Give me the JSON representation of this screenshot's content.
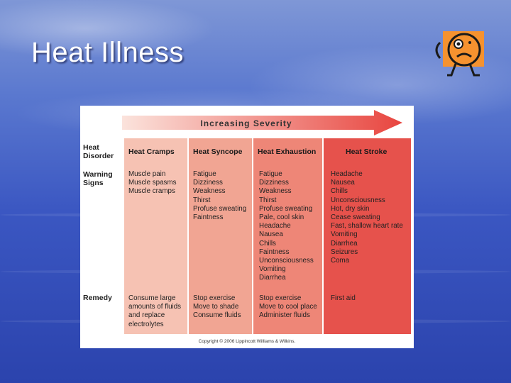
{
  "slide": {
    "title": "Heat Illness"
  },
  "table": {
    "arrow_label": "Increasing Severity",
    "row_labels": {
      "disorder": "Heat\nDisorder",
      "warning": "Warning\nSigns",
      "remedy": "Remedy"
    },
    "columns": [
      {
        "name": "Heat Cramps",
        "signs": [
          "Muscle pain",
          "Muscle spasms",
          "Muscle cramps"
        ],
        "remedy": [
          "Consume large",
          "amounts of fluids",
          "and replace",
          "electrolytes"
        ]
      },
      {
        "name": "Heat Syncope",
        "signs": [
          "Fatigue",
          "Dizziness",
          "Weakness",
          "Thirst",
          "Profuse sweating",
          "Faintness"
        ],
        "remedy": [
          "Stop exercise",
          "Move to shade",
          "Consume fluids"
        ]
      },
      {
        "name": "Heat Exhaustion",
        "signs": [
          "Fatigue",
          "Dizziness",
          "Weakness",
          "Thirst",
          "Profuse sweating",
          "Pale, cool skin",
          "Headache",
          "Nausea",
          "Chills",
          "Faintness",
          "Unconsciousness",
          "Vomiting",
          "Diarrhea"
        ],
        "remedy": [
          "Stop exercise",
          "Move to cool place",
          "Administer fluids"
        ]
      },
      {
        "name": "Heat Stroke",
        "signs": [
          "Headache",
          "Nausea",
          "Chills",
          "Unconsciousness",
          "Hot, dry skin",
          "Cease sweating",
          "Fast, shallow heart rate",
          "Vomiting",
          "Diarrhea",
          "Seizures",
          "Coma"
        ],
        "remedy": [
          "First aid"
        ]
      }
    ],
    "copyright": "Copyright © 2006 Lippincott Williams & Wilkins."
  },
  "colors": {
    "col1": "#f6c2b3",
    "col2": "#f1a593",
    "col3": "#ee8677",
    "col4": "#e6524c",
    "arrow_start": "#fbe3dc",
    "arrow_end": "#e8453f"
  }
}
